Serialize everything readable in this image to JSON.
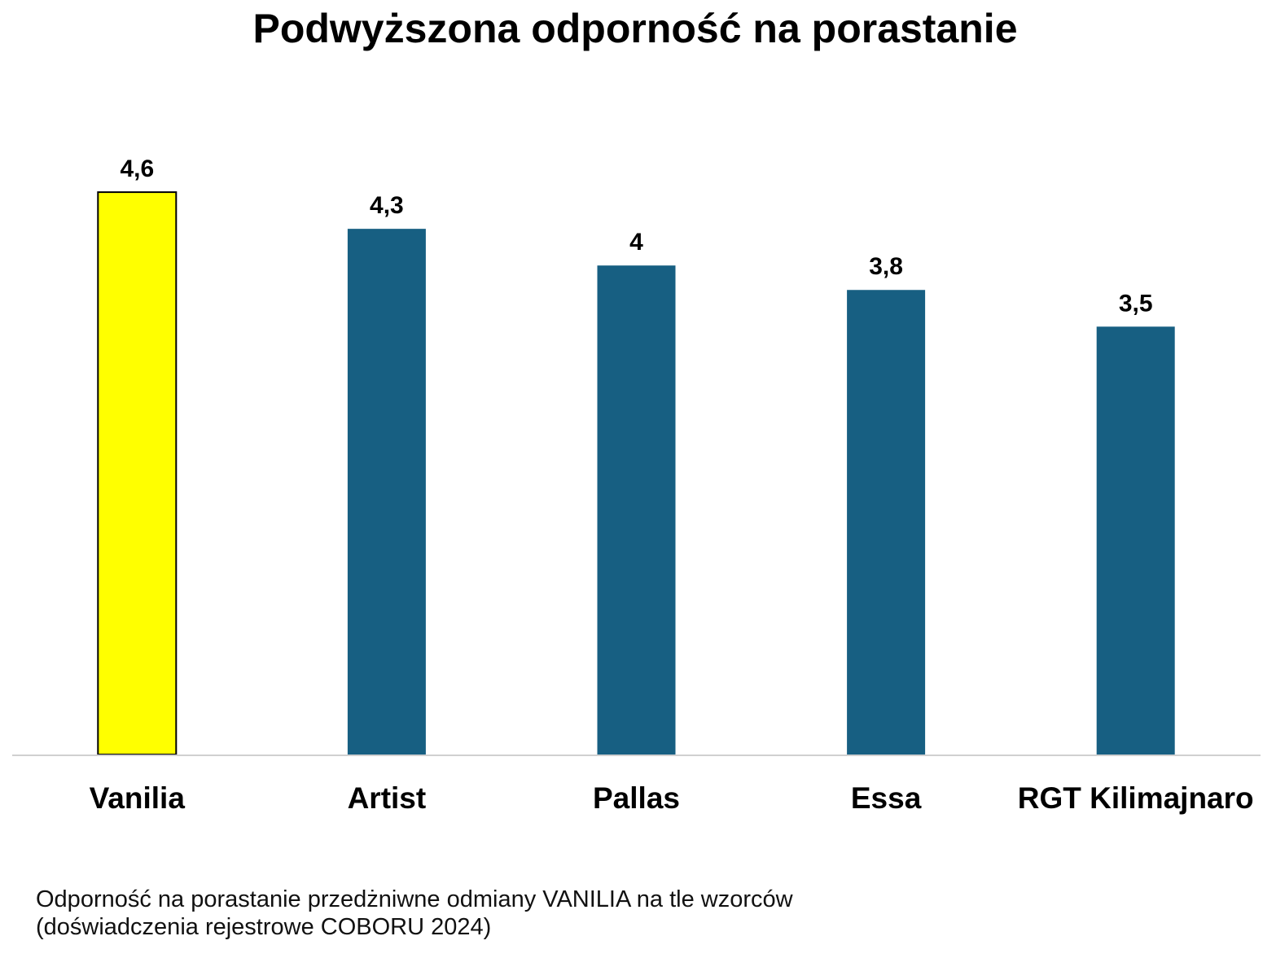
{
  "chart_data": {
    "type": "bar",
    "title": "Podwyższona odporność na porastanie",
    "categories": [
      "Vanilia",
      "Artist",
      "Pallas",
      "Essa",
      "RGT Kilimajnaro"
    ],
    "values": [
      4.6,
      4.3,
      4,
      3.8,
      3.5
    ],
    "value_labels": [
      "4,6",
      "4,3",
      "4",
      "3,8",
      "3,5"
    ],
    "bar_colors": [
      "#FFFF00",
      "#175F82",
      "#175F82",
      "#175F82",
      "#175F82"
    ],
    "highlight_outline": "#000000",
    "axis_color": "#D0D0D0",
    "ylim": [
      0,
      4.6
    ],
    "grid": false,
    "legend": "none",
    "xlabel": "",
    "ylabel": ""
  },
  "caption": {
    "line1": "Odporność na porastanie przedżniwne odmiany VANILIA na tle wzorców",
    "line2": "(doświadczenia rejestrowe COBORU 2024)"
  }
}
